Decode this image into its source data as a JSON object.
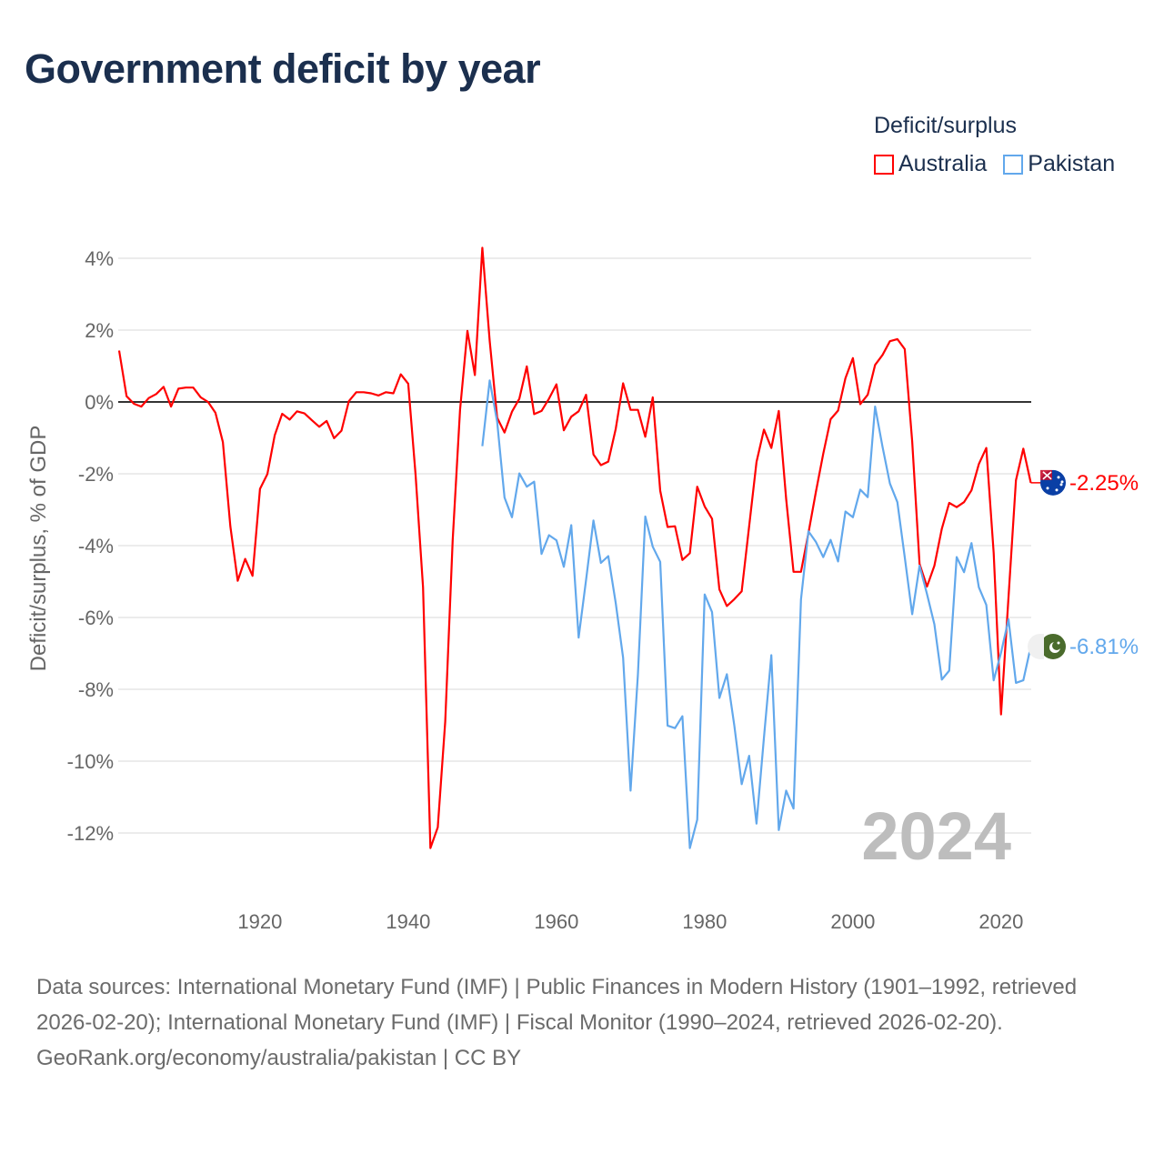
{
  "title": "Government deficit by year",
  "legend": {
    "title": "Deficit/surplus",
    "items": [
      {
        "label": "Australia",
        "color": "#ff0000"
      },
      {
        "label": "Pakistan",
        "color": "#62a8ec"
      }
    ]
  },
  "year_watermark": "2024",
  "footer": {
    "sources": "Data sources: International Monetary Fund (IMF) | Public Finances in Modern History (1901–1992, retrieved 2026-02-20); International Monetary Fund (IMF) | Fiscal Monitor (1990–2024, retrieved 2026-02-20).",
    "credit": "GeoRank.org/economy/australia/pakistan | CC BY"
  },
  "chart_data": {
    "type": "line",
    "title": "Government deficit by year",
    "xlabel": "",
    "ylabel": "Deficit/surplus, % of GDP",
    "xlim": [
      1901,
      2024
    ],
    "ylim": [
      -13,
      4.5
    ],
    "x_ticks": [
      1920,
      1940,
      1960,
      1980,
      2000,
      2020
    ],
    "y_ticks": [
      4,
      2,
      0,
      -2,
      -4,
      -6,
      -8,
      -10,
      -12
    ],
    "y_tick_labels": [
      "4%",
      "2%",
      "0%",
      "-2%",
      "-4%",
      "-6%",
      "-8%",
      "-10%",
      "-12%"
    ],
    "grid": true,
    "legend_position": "top-right",
    "series": [
      {
        "name": "Australia",
        "color": "#ff0000",
        "end_label": "-2.25%",
        "start_year": 1901,
        "values": [
          1.43,
          0.16,
          -0.05,
          -0.13,
          0.11,
          0.22,
          0.42,
          -0.13,
          0.37,
          0.4,
          0.4,
          0.13,
          0.0,
          -0.3,
          -1.12,
          -3.46,
          -4.98,
          -4.37,
          -4.84,
          -2.42,
          -2.01,
          -0.93,
          -0.33,
          -0.49,
          -0.26,
          -0.32,
          -0.51,
          -0.69,
          -0.53,
          -1.01,
          -0.8,
          0.02,
          0.27,
          0.27,
          0.24,
          0.18,
          0.27,
          0.24,
          0.77,
          0.51,
          -2.03,
          -5.16,
          -12.42,
          -11.84,
          -8.9,
          -3.85,
          -0.22,
          1.98,
          0.75,
          4.29,
          1.7,
          -0.44,
          -0.85,
          -0.27,
          0.09,
          0.99,
          -0.34,
          -0.25,
          0.09,
          0.49,
          -0.79,
          -0.41,
          -0.26,
          0.2,
          -1.46,
          -1.76,
          -1.66,
          -0.75,
          0.52,
          -0.22,
          -0.22,
          -0.97,
          0.13,
          -2.47,
          -3.48,
          -3.46,
          -4.4,
          -4.21,
          -2.36,
          -2.91,
          -3.25,
          -5.22,
          -5.68,
          -5.49,
          -5.27,
          -3.46,
          -1.67,
          -0.77,
          -1.28,
          -0.25,
          -2.7,
          -4.73,
          -4.73,
          -3.65,
          -2.52,
          -1.44,
          -0.48,
          -0.24,
          0.66,
          1.22,
          -0.06,
          0.2,
          1.03,
          1.31,
          1.69,
          1.75,
          1.47,
          -1.1,
          -4.51,
          -5.14,
          -4.56,
          -3.53,
          -2.81,
          -2.93,
          -2.79,
          -2.46,
          -1.73,
          -1.28,
          -4.2,
          -8.7,
          -5.44,
          -2.18,
          -1.3,
          -2.25
        ]
      },
      {
        "name": "Pakistan",
        "color": "#62a8ec",
        "end_label": "-6.81%",
        "start_year": 1950,
        "values": [
          -1.23,
          0.6,
          -0.55,
          -2.66,
          -3.21,
          -1.99,
          -2.36,
          -2.22,
          -4.23,
          -3.71,
          -3.85,
          -4.59,
          -3.43,
          -6.56,
          -4.95,
          -3.3,
          -4.48,
          -4.29,
          -5.6,
          -7.12,
          -10.82,
          -7.58,
          -3.19,
          -4.03,
          -4.45,
          -9.01,
          -9.08,
          -8.75,
          -12.42,
          -11.63,
          -5.36,
          -5.85,
          -8.24,
          -7.58,
          -9.01,
          -10.64,
          -9.85,
          -11.74,
          -9.34,
          -7.05,
          -11.92,
          -10.82,
          -11.32,
          -5.5,
          -3.6,
          -3.89,
          -4.32,
          -3.84,
          -4.44,
          -3.05,
          -3.21,
          -2.44,
          -2.65,
          -0.13,
          -1.25,
          -2.27,
          -2.79,
          -4.32,
          -5.91,
          -4.56,
          -5.35,
          -6.19,
          -7.73,
          -7.48,
          -4.32,
          -4.74,
          -3.93,
          -5.16,
          -5.65,
          -7.75,
          -6.98,
          -6.05,
          -7.82,
          -7.75,
          -6.81
        ]
      }
    ]
  }
}
